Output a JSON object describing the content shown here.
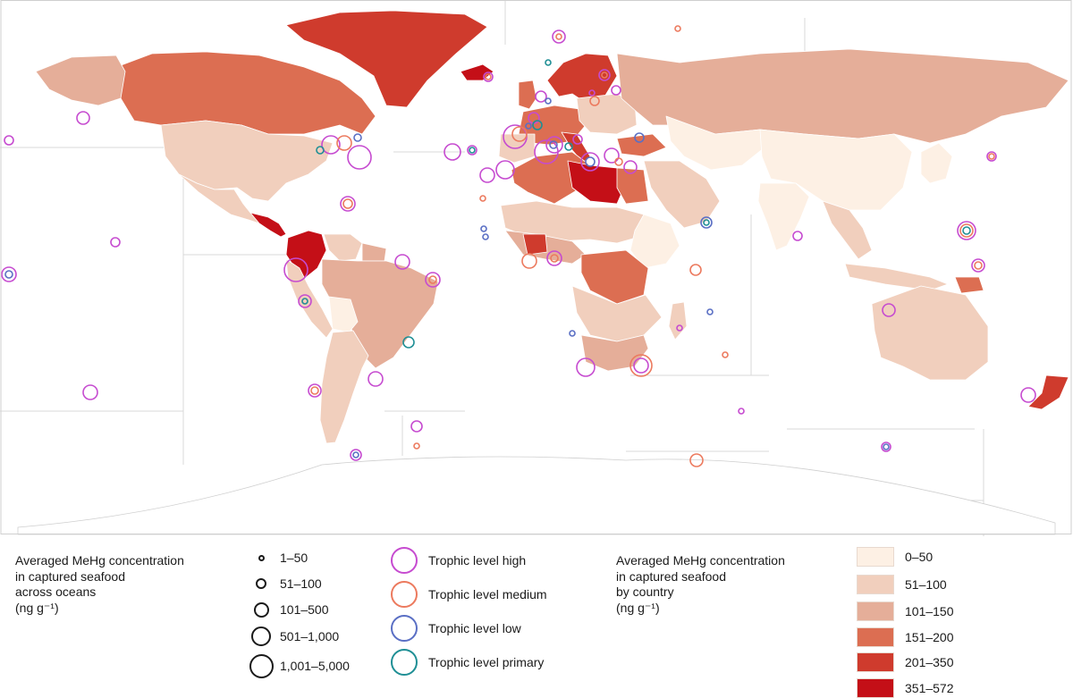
{
  "colors": {
    "ocean": "#ffffff",
    "country_border": "#ffffff",
    "eez_line": "#d9d9d9",
    "unknown_land": "#f0f0f0"
  },
  "legend_ocean": {
    "title": "Averaged MeHg concentration\nin captured seafood\nacross oceans\n(ng g⁻¹)",
    "sizes": [
      {
        "label": "1–50"
      },
      {
        "label": "51–100"
      },
      {
        "label": "101–500"
      },
      {
        "label": "501–1,000"
      },
      {
        "label": "1,001–5,000"
      }
    ]
  },
  "legend_trophic": [
    {
      "label": "Trophic level high",
      "color": "#c64bd0"
    },
    {
      "label": "Trophic level medium",
      "color": "#ec7a5e"
    },
    {
      "label": "Trophic level low",
      "color": "#5a6fc4"
    },
    {
      "label": "Trophic level primary",
      "color": "#1f8f95"
    }
  ],
  "legend_country": {
    "title": "Averaged MeHg concentration\nin captured seafood\nby country\n(ng g⁻¹)",
    "classes": [
      {
        "label": "0–50",
        "color": "#fdf0e4"
      },
      {
        "label": "51–100",
        "color": "#f1cfbd"
      },
      {
        "label": "101–150",
        "color": "#e5ae99"
      },
      {
        "label": "151–200",
        "color": "#dc6e52"
      },
      {
        "label": "201–350",
        "color": "#cf3b2d"
      },
      {
        "label": "351–572",
        "color": "#c40f17"
      }
    ]
  }
}
